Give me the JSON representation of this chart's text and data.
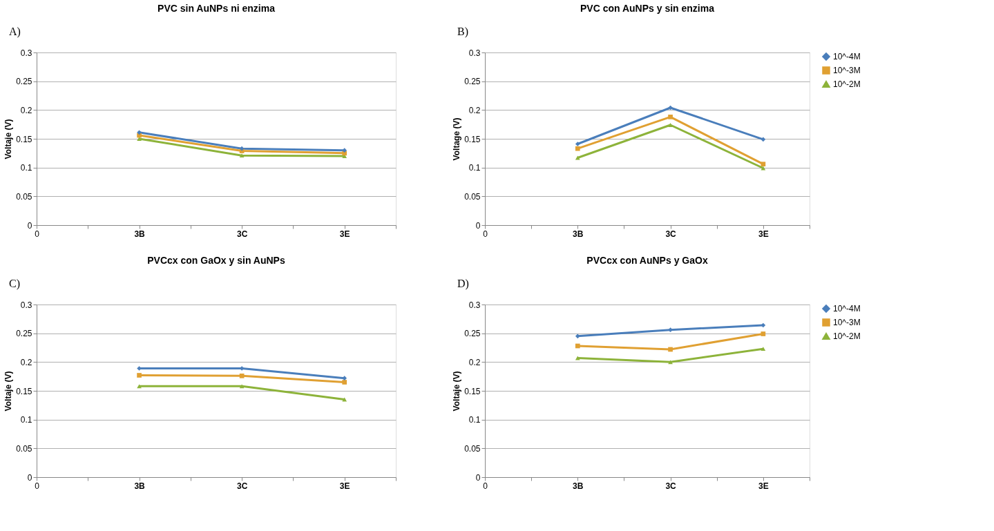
{
  "chart_data": [
    {
      "type": "line",
      "title": "PVC sin AuNPs ni enzima",
      "ylabel": "Voltaje (V)",
      "annotations": [
        "A)"
      ],
      "categories": [
        "0",
        null,
        "3B",
        null,
        "3C",
        null,
        "3E",
        null
      ],
      "ylim": [
        0,
        0.3
      ],
      "yticks": [
        0,
        0.05,
        0.1,
        0.15,
        0.2,
        0.25,
        0.3
      ],
      "grid": "y",
      "legend": false,
      "series": [
        {
          "color": "#4a7ebb",
          "marker": "diamond",
          "values": [
            null,
            null,
            0.161,
            null,
            0.133,
            null,
            0.13,
            null
          ]
        },
        {
          "color": "#e0a032",
          "marker": "square",
          "values": [
            null,
            null,
            0.156,
            null,
            0.129,
            null,
            0.125,
            null
          ]
        },
        {
          "color": "#8db33a",
          "marker": "triangle",
          "values": [
            null,
            null,
            0.15,
            null,
            0.121,
            null,
            0.12,
            null
          ]
        }
      ]
    },
    {
      "type": "line",
      "title": "PVC con AuNPs y sin enzima",
      "ylabel": "Voltage (V)",
      "annotations": [
        "B)"
      ],
      "categories": [
        "0",
        null,
        "3B",
        null,
        "3C",
        null,
        "3E",
        null
      ],
      "ylim": [
        0,
        0.3
      ],
      "yticks": [
        0,
        0.05,
        0.1,
        0.15,
        0.2,
        0.25,
        0.3
      ],
      "grid": "y",
      "legend": "right",
      "series": [
        {
          "name": "10^-4M",
          "color": "#4a7ebb",
          "marker": "diamond",
          "values": [
            null,
            null,
            0.141,
            null,
            0.204,
            null,
            0.149,
            null
          ]
        },
        {
          "name": "10^-3M",
          "color": "#e0a032",
          "marker": "square",
          "values": [
            null,
            null,
            0.133,
            null,
            0.188,
            null,
            0.106,
            null
          ]
        },
        {
          "name": "10^-2M",
          "color": "#8db33a",
          "marker": "triangle",
          "values": [
            null,
            null,
            0.117,
            null,
            0.174,
            null,
            0.099,
            null
          ]
        }
      ]
    },
    {
      "type": "line",
      "title": "PVCcx  con GaOx y sin AuNPs",
      "ylabel": "Voltaje (V)",
      "annotations": [
        "C)"
      ],
      "categories": [
        "0",
        null,
        "3B",
        null,
        "3C",
        null,
        "3E",
        null
      ],
      "ylim": [
        0,
        0.3
      ],
      "yticks": [
        0,
        0.05,
        0.1,
        0.15,
        0.2,
        0.25,
        0.3
      ],
      "grid": "y",
      "legend": false,
      "series": [
        {
          "color": "#4a7ebb",
          "marker": "diamond",
          "values": [
            null,
            null,
            0.189,
            null,
            0.189,
            null,
            0.172,
            null
          ]
        },
        {
          "color": "#e0a032",
          "marker": "square",
          "values": [
            null,
            null,
            0.177,
            null,
            0.176,
            null,
            0.165,
            null
          ]
        },
        {
          "color": "#8db33a",
          "marker": "triangle",
          "values": [
            null,
            null,
            0.158,
            null,
            0.158,
            null,
            0.135,
            null
          ]
        }
      ]
    },
    {
      "type": "line",
      "title": "PVCcx con AuNPs y GaOx",
      "ylabel": "Voltaje (V)",
      "annotations": [
        "D)"
      ],
      "categories": [
        "0",
        null,
        "3B",
        null,
        "3C",
        null,
        "3E",
        null
      ],
      "ylim": [
        0,
        0.3
      ],
      "yticks": [
        0,
        0.05,
        0.1,
        0.15,
        0.2,
        0.25,
        0.3
      ],
      "grid": "y",
      "legend": "right",
      "series": [
        {
          "name": "10^-4M",
          "color": "#4a7ebb",
          "marker": "diamond",
          "values": [
            null,
            null,
            0.245,
            null,
            0.256,
            null,
            0.264,
            null
          ]
        },
        {
          "name": "10^-3M",
          "color": "#e0a032",
          "marker": "square",
          "values": [
            null,
            null,
            0.228,
            null,
            0.222,
            null,
            0.249,
            null
          ]
        },
        {
          "name": "10^-2M",
          "color": "#8db33a",
          "marker": "triangle",
          "values": [
            null,
            null,
            0.207,
            null,
            0.2,
            null,
            0.223,
            null
          ]
        }
      ]
    }
  ]
}
